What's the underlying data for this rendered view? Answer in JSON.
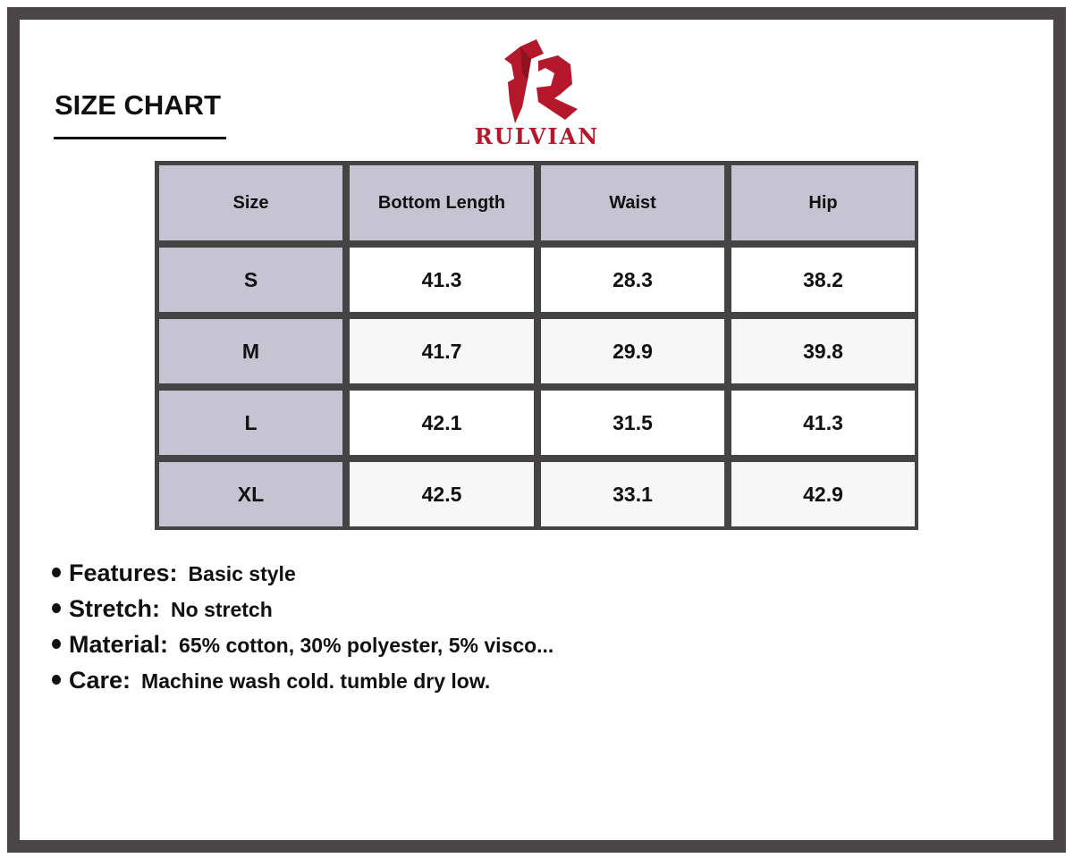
{
  "title": "SIZE CHART",
  "brand": {
    "name": "RULVIAN",
    "color": "#b5182b"
  },
  "table": {
    "headers": [
      "Size",
      "Bottom Length",
      "Waist",
      "Hip"
    ],
    "rows": [
      [
        "S",
        "41.3",
        "28.3",
        "38.2"
      ],
      [
        "M",
        "41.7",
        "29.9",
        "39.8"
      ],
      [
        "L",
        "42.1",
        "31.5",
        "41.3"
      ],
      [
        "XL",
        "42.5",
        "33.1",
        "42.9"
      ]
    ]
  },
  "notes": [
    {
      "label": "Features:",
      "value": "Basic style"
    },
    {
      "label": "Stretch:",
      "value": "No stretch"
    },
    {
      "label": "Material:",
      "value": "65% cotton, 30% polyester, 5% visco..."
    },
    {
      "label": "Care:",
      "value": "Machine wash cold. tumble dry low."
    }
  ]
}
